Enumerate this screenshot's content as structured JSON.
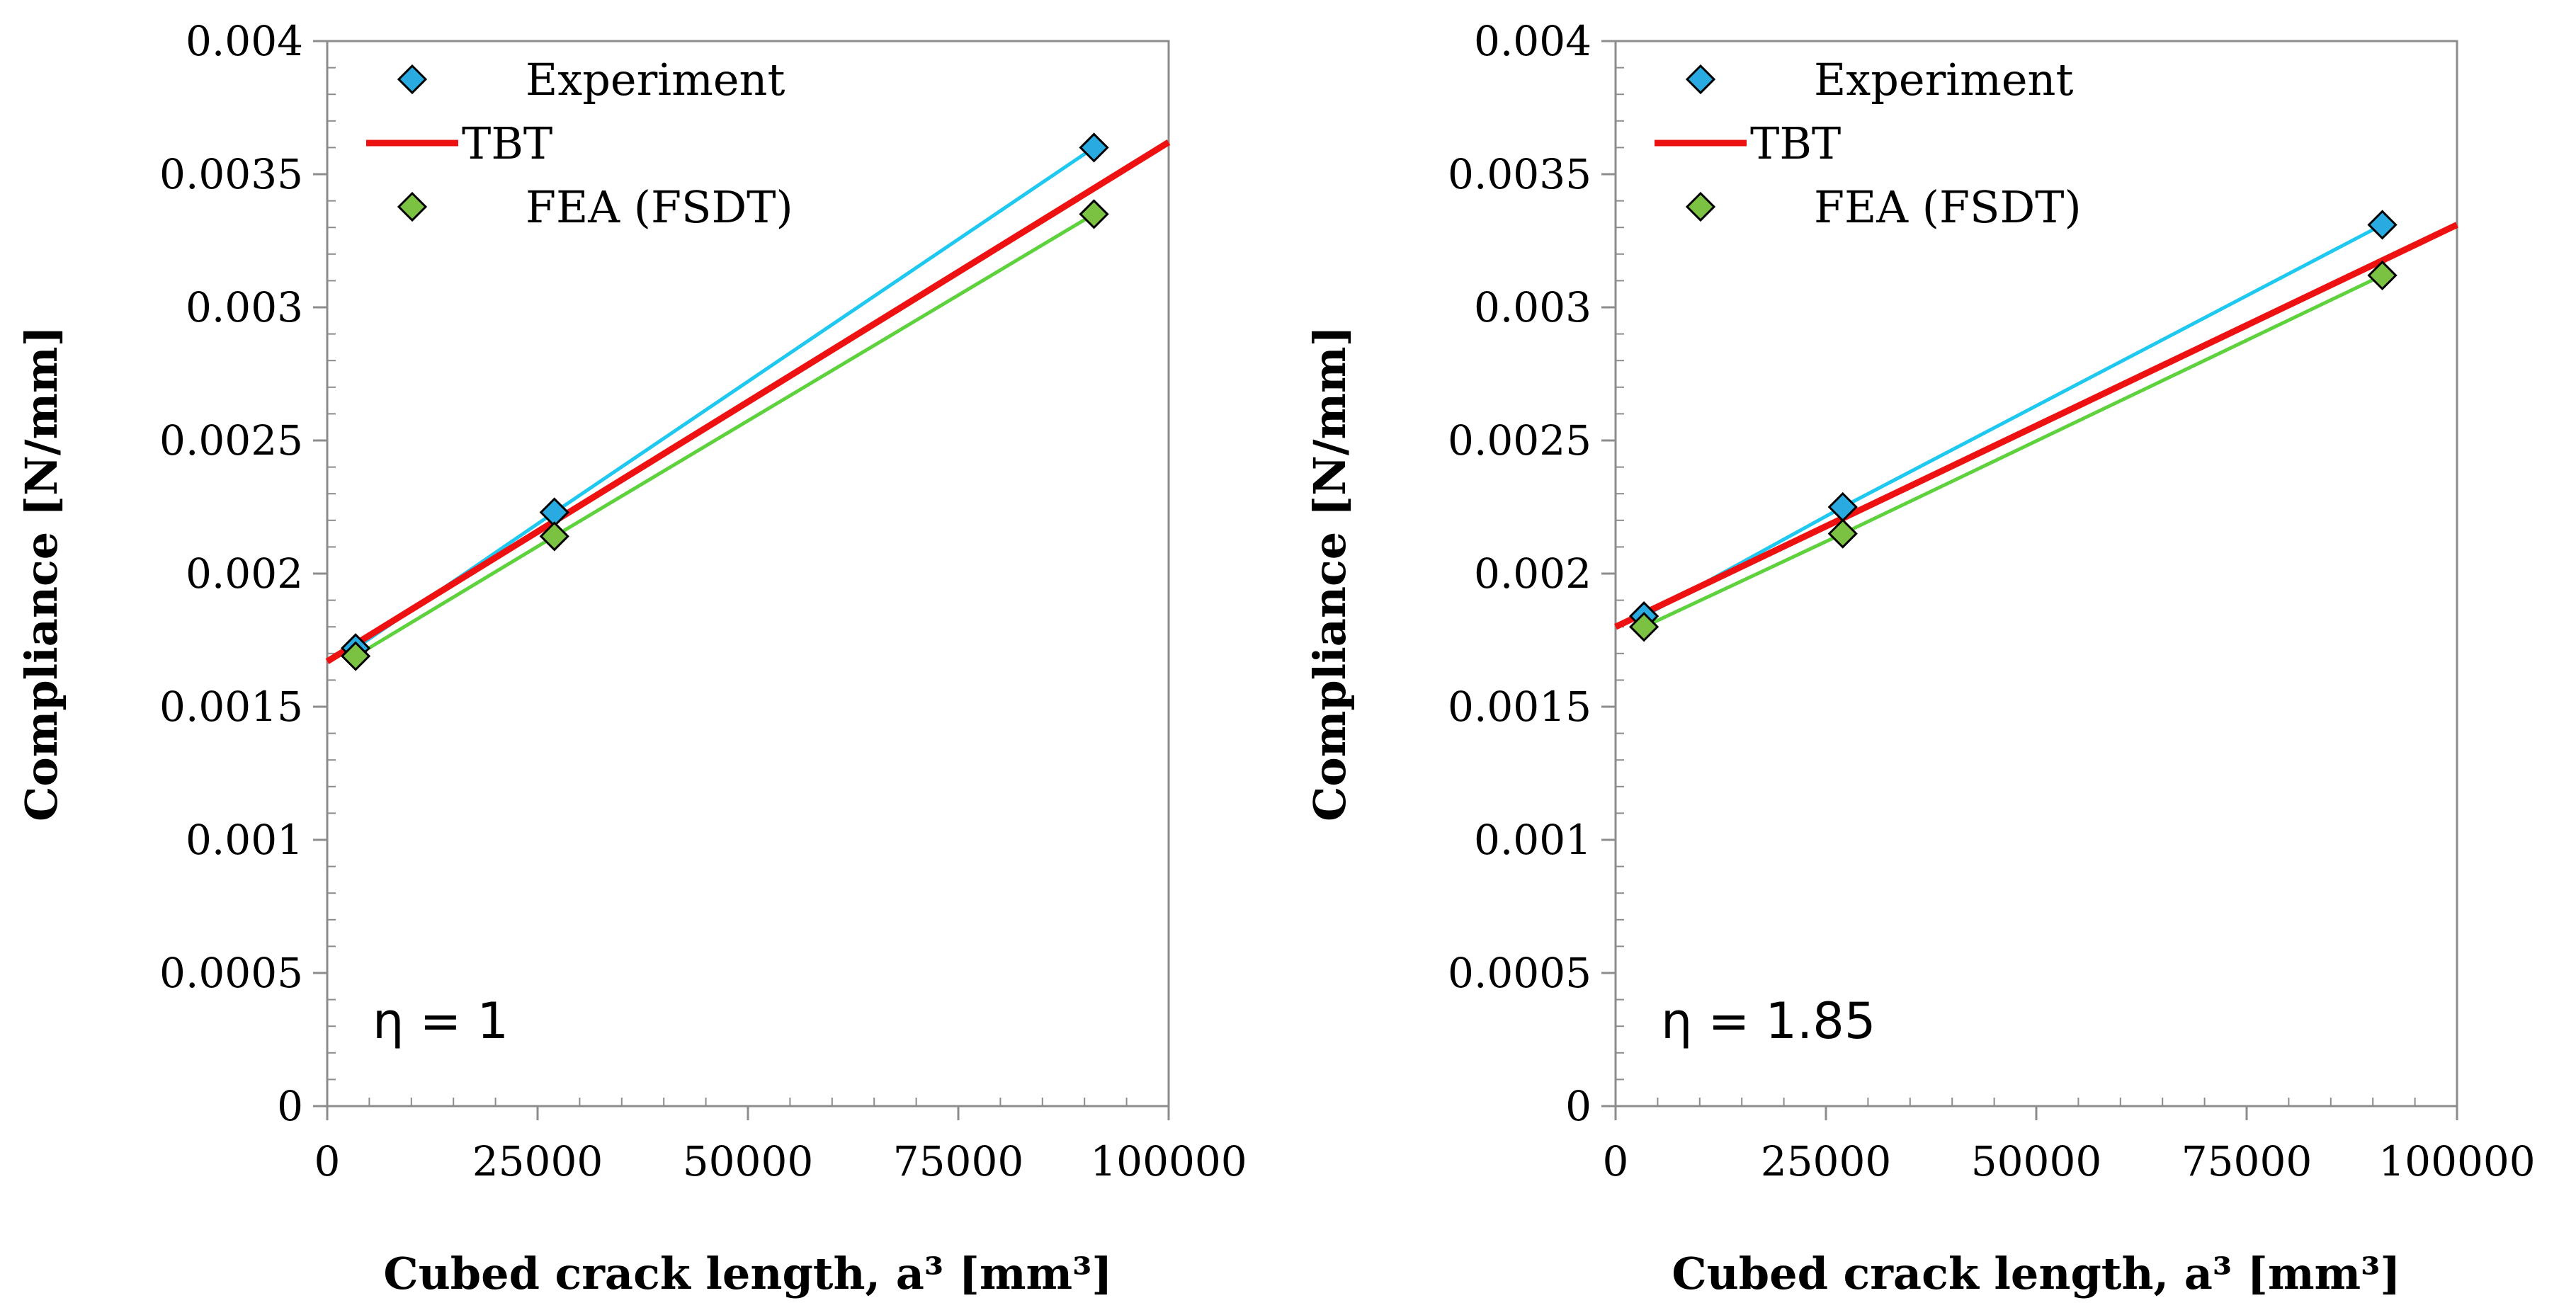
{
  "chart_data": [
    {
      "type": "scatter",
      "annotation": "η = 1",
      "xlabel": "Cubed crack length, a³ [mm³]",
      "ylabel": "Compliance [N/mm]",
      "xlim": [
        0,
        100000
      ],
      "ylim": [
        0,
        0.004
      ],
      "x_ticks": [
        "0",
        "25000",
        "50000",
        "75000",
        "100000"
      ],
      "y_ticks": [
        "0",
        "0.0005",
        "0.001",
        "0.0015",
        "0.002",
        "0.0025",
        "0.003",
        "0.0035",
        "0.004"
      ],
      "grid": false,
      "legend_position": "top-left",
      "series": [
        {
          "name": "Experiment",
          "kind": "marker-fit",
          "color": "#29abe2",
          "fit_color": "#1ec8f0",
          "x": [
            3375,
            27000,
            91125
          ],
          "y": [
            0.00172,
            0.00223,
            0.0036
          ]
        },
        {
          "name": "TBT",
          "kind": "line",
          "color": "#ee1111",
          "x": [
            0,
            100000
          ],
          "y": [
            0.00167,
            0.00362
          ]
        },
        {
          "name": "FEA (FSDT)",
          "kind": "marker-fit",
          "color": "#7cc242",
          "fit_color": "#5dd23c",
          "x": [
            3375,
            27000,
            91125
          ],
          "y": [
            0.00169,
            0.00214,
            0.00335
          ]
        }
      ]
    },
    {
      "type": "scatter",
      "annotation": "η = 1.85",
      "xlabel": "Cubed crack length, a³ [mm³]",
      "ylabel": "Compliance [N/mm]",
      "xlim": [
        0,
        100000
      ],
      "ylim": [
        0,
        0.004
      ],
      "x_ticks": [
        "0",
        "25000",
        "50000",
        "75000",
        "100000"
      ],
      "y_ticks": [
        "0",
        "0.0005",
        "0.001",
        "0.0015",
        "0.002",
        "0.0025",
        "0.003",
        "0.0035",
        "0.004"
      ],
      "grid": false,
      "legend_position": "top-left",
      "series": [
        {
          "name": "Experiment",
          "kind": "marker-fit",
          "color": "#29abe2",
          "fit_color": "#1ec8f0",
          "x": [
            3375,
            27000,
            91125
          ],
          "y": [
            0.00184,
            0.00225,
            0.00331
          ]
        },
        {
          "name": "TBT",
          "kind": "line",
          "color": "#ee1111",
          "x": [
            0,
            100000
          ],
          "y": [
            0.0018,
            0.00331
          ]
        },
        {
          "name": "FEA (FSDT)",
          "kind": "marker-fit",
          "color": "#7cc242",
          "fit_color": "#5dd23c",
          "x": [
            3375,
            27000,
            91125
          ],
          "y": [
            0.0018,
            0.00215,
            0.00312
          ]
        }
      ]
    }
  ]
}
